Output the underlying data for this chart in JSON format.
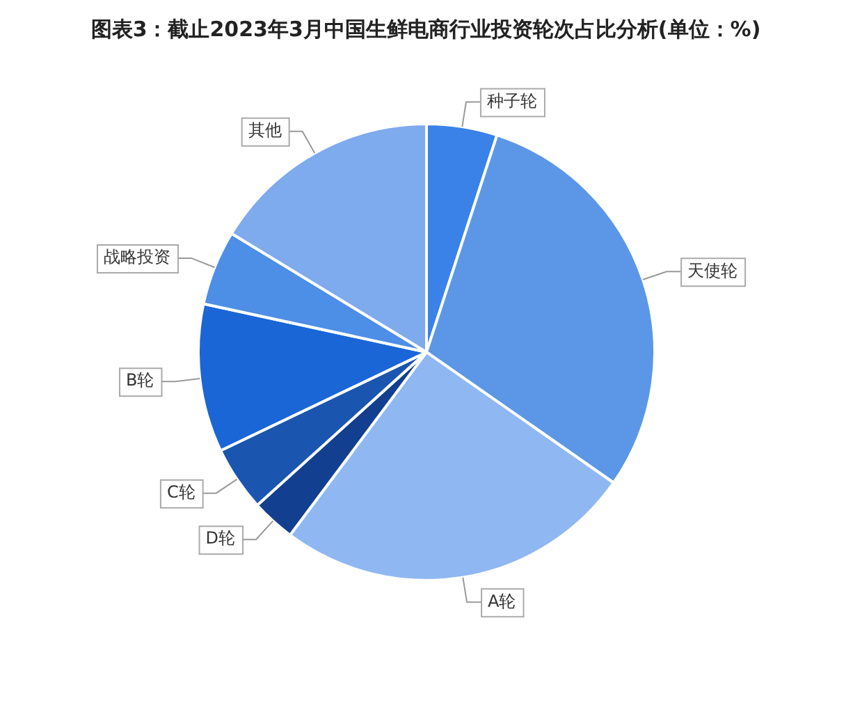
{
  "chart_data": {
    "type": "pie",
    "title": "图表3：截止2023年3月中国生鲜电商行业投资轮次占比分析(单位：%)",
    "categories": [
      "种子轮",
      "天使轮",
      "A轮",
      "D轮",
      "C轮",
      "B轮",
      "战略投资",
      "其他"
    ],
    "values": [
      5,
      29.7,
      25.5,
      3.1,
      4.6,
      10.5,
      5.3,
      16.3
    ],
    "colors": [
      "#3a82e8",
      "#5b97e6",
      "#8fb8f2",
      "#123f8f",
      "#1a56b0",
      "#1b66d6",
      "#4d8ee6",
      "#7eaaee"
    ],
    "legend": false
  }
}
